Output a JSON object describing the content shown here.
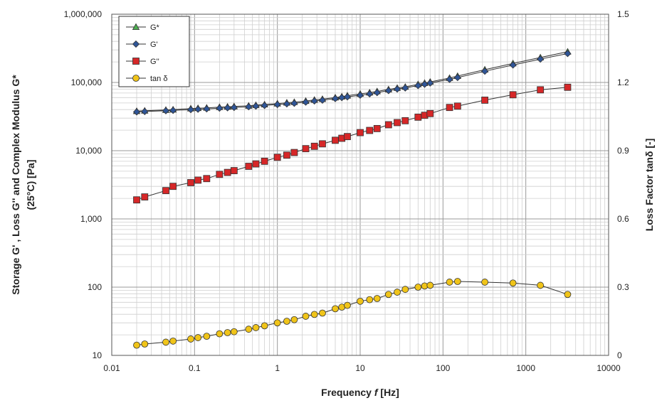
{
  "chart_data": {
    "type": "scatter",
    "x_scale": "log",
    "y_scale": "log",
    "y2_scale": "linear",
    "xlim": [
      0.01,
      10000
    ],
    "ylim": [
      10,
      1000000
    ],
    "y2lim": [
      0,
      1.5
    ],
    "xlabel_parts": [
      "Frequency ",
      "f",
      " [Hz]"
    ],
    "ylabel_line1": "Storage  G' , Loss G'' and  Complex Modulus G*",
    "ylabel_line2": "(25°C) [Pa]",
    "y2label": "Loss Factor tanδ [-]",
    "x_tick_labels": [
      "0.01",
      "0.1",
      "1",
      "10",
      "100",
      "1000",
      "10000"
    ],
    "y_tick_labels": [
      "10",
      "100",
      "1,000",
      "10,000",
      "100,000",
      "1,000,000"
    ],
    "y2_tick_labels": [
      "0",
      "0.3",
      "0.6",
      "0.9",
      "1.2",
      "1.5"
    ],
    "grid": true,
    "legend_position": "top-left",
    "series": [
      {
        "name": "G*",
        "axis": "left",
        "color": "#4caf50",
        "marker": "triangle",
        "x": [
          0.02,
          0.025,
          0.045,
          0.055,
          0.09,
          0.11,
          0.14,
          0.2,
          0.25,
          0.3,
          0.45,
          0.55,
          0.7,
          1.0,
          1.3,
          1.6,
          2.2,
          2.8,
          3.5,
          5.0,
          6.0,
          7.0,
          10,
          13,
          16,
          22,
          28,
          35,
          50,
          60,
          70,
          120,
          150,
          320,
          700,
          1500,
          3200
        ],
        "y": [
          38000,
          38500,
          39500,
          40000,
          41500,
          42000,
          42500,
          43500,
          44000,
          44500,
          45500,
          46500,
          47500,
          49000,
          50500,
          51500,
          53500,
          55500,
          57000,
          60000,
          62000,
          64000,
          68000,
          71000,
          74000,
          79000,
          83000,
          86000,
          94000,
          98000,
          102000,
          116000,
          124000,
          154000,
          190000,
          232000,
          282000
        ]
      },
      {
        "name": "G'",
        "axis": "left",
        "color": "#2f5597",
        "marker": "diamond",
        "x": [
          0.02,
          0.025,
          0.045,
          0.055,
          0.09,
          0.11,
          0.14,
          0.2,
          0.25,
          0.3,
          0.45,
          0.55,
          0.7,
          1.0,
          1.3,
          1.6,
          2.2,
          2.8,
          3.5,
          5.0,
          6.0,
          7.0,
          10,
          13,
          16,
          22,
          28,
          35,
          50,
          60,
          70,
          120,
          150,
          320,
          700,
          1500,
          3200
        ],
        "y": [
          37000,
          37500,
          38500,
          39000,
          40000,
          40500,
          41000,
          42000,
          42500,
          43000,
          44000,
          45000,
          46000,
          47500,
          48500,
          49500,
          51500,
          53500,
          55000,
          58000,
          60000,
          61500,
          65000,
          68000,
          71000,
          76000,
          80000,
          83000,
          90000,
          94000,
          98000,
          111000,
          118000,
          146000,
          180000,
          220000,
          265000
        ]
      },
      {
        "name": "G''",
        "axis": "left",
        "color": "#d62728",
        "marker": "square",
        "x": [
          0.02,
          0.025,
          0.045,
          0.055,
          0.09,
          0.11,
          0.14,
          0.2,
          0.25,
          0.3,
          0.45,
          0.55,
          0.7,
          1.0,
          1.3,
          1.6,
          2.2,
          2.8,
          3.5,
          5.0,
          6.0,
          7.0,
          10,
          13,
          16,
          22,
          28,
          35,
          50,
          60,
          70,
          120,
          150,
          320,
          700,
          1500,
          3200
        ],
        "y": [
          1900,
          2100,
          2600,
          3000,
          3400,
          3700,
          3900,
          4500,
          4800,
          5100,
          5900,
          6400,
          7000,
          8000,
          8600,
          9400,
          10700,
          11600,
          12600,
          14200,
          15200,
          16100,
          18400,
          19800,
          21100,
          24000,
          25800,
          27500,
          31000,
          33000,
          35000,
          43000,
          45000,
          55000,
          66000,
          78000,
          85000
        ]
      },
      {
        "name": "tan δ",
        "axis": "right",
        "color": "#f0c419",
        "marker": "circle",
        "x": [
          0.02,
          0.025,
          0.045,
          0.055,
          0.09,
          0.11,
          0.14,
          0.2,
          0.25,
          0.3,
          0.45,
          0.55,
          0.7,
          1.0,
          1.3,
          1.6,
          2.2,
          2.8,
          3.5,
          5.0,
          6.0,
          7.0,
          10,
          13,
          16,
          22,
          28,
          35,
          50,
          60,
          70,
          120,
          150,
          320,
          700,
          1500,
          3200
        ],
        "y": [
          0.045,
          0.05,
          0.058,
          0.063,
          0.072,
          0.078,
          0.084,
          0.095,
          0.1,
          0.104,
          0.115,
          0.122,
          0.13,
          0.143,
          0.15,
          0.157,
          0.172,
          0.18,
          0.186,
          0.205,
          0.212,
          0.22,
          0.238,
          0.245,
          0.25,
          0.268,
          0.278,
          0.29,
          0.3,
          0.305,
          0.308,
          0.322,
          0.325,
          0.322,
          0.318,
          0.308,
          0.268
        ]
      }
    ]
  }
}
